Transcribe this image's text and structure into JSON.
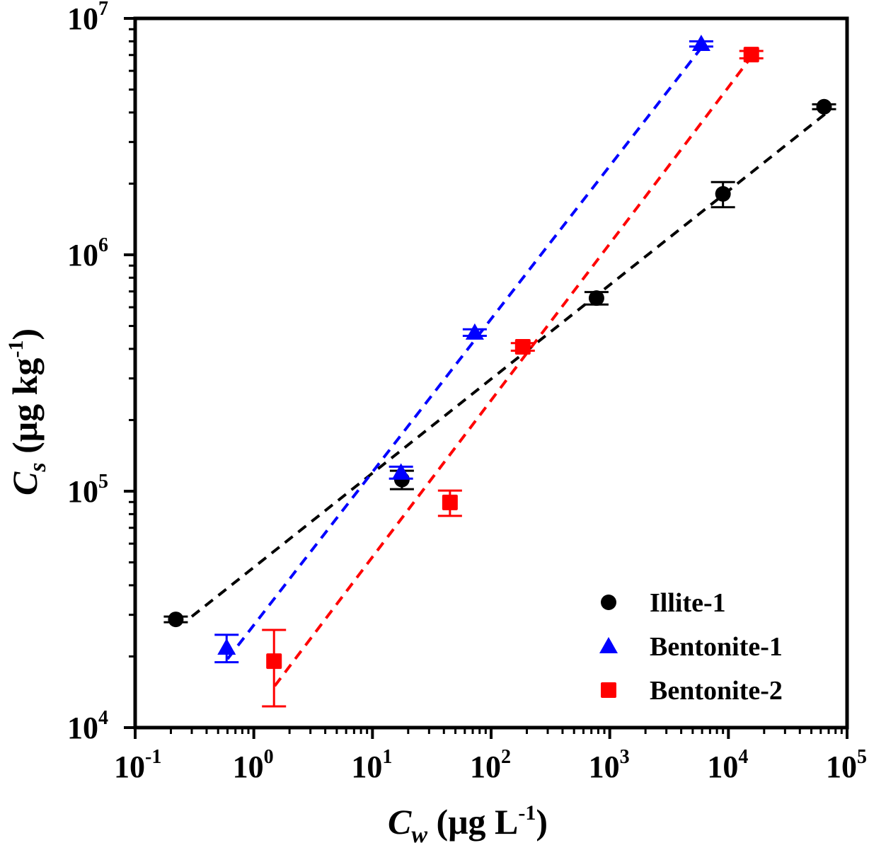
{
  "chart_data": {
    "type": "scatter",
    "title": "",
    "xlabel": {
      "main": "C",
      "sub": "w",
      "unit": " (μg L",
      "unit_sup": "-1",
      "unit_end": ")"
    },
    "ylabel": {
      "main": "C",
      "sub": "s",
      "unit": " (μg kg",
      "unit_sup": "-1",
      "unit_end": ")"
    },
    "xscale": "log",
    "yscale": "log",
    "xlim": [
      0.1,
      100000
    ],
    "ylim": [
      10000,
      10000000
    ],
    "x_ticks": [
      {
        "base": "10",
        "exp": "-1",
        "value": 0.1
      },
      {
        "base": "10",
        "exp": "0",
        "value": 1
      },
      {
        "base": "10",
        "exp": "1",
        "value": 10
      },
      {
        "base": "10",
        "exp": "2",
        "value": 100
      },
      {
        "base": "10",
        "exp": "3",
        "value": 1000
      },
      {
        "base": "10",
        "exp": "4",
        "value": 10000
      },
      {
        "base": "10",
        "exp": "5",
        "value": 100000
      }
    ],
    "y_ticks": [
      {
        "base": "10",
        "exp": "4",
        "value": 10000
      },
      {
        "base": "10",
        "exp": "5",
        "value": 100000
      },
      {
        "base": "10",
        "exp": "6",
        "value": 1000000
      },
      {
        "base": "10",
        "exp": "7",
        "value": 10000000
      }
    ],
    "grid": false,
    "legend_position": "bottom-right",
    "series": [
      {
        "name": "Illite-1",
        "marker": "circle",
        "color": "#000000",
        "points": [
          {
            "x": 0.22,
            "y": 28700,
            "yerr": 800
          },
          {
            "x": 17.7,
            "y": 112000,
            "yerr": 10000
          },
          {
            "x": 773,
            "y": 656000,
            "yerr": 40000
          },
          {
            "x": 9000,
            "y": 1810000,
            "yerr": 220000
          },
          {
            "x": 64000,
            "y": 4230000,
            "yerr": 100000
          }
        ],
        "fit": {
          "type": "freundlich",
          "x_range": [
            0.3,
            70000
          ],
          "y_range": [
            29500,
            4050000
          ]
        }
      },
      {
        "name": "Bentonite-1",
        "marker": "triangle",
        "color": "#0000ff",
        "points": [
          {
            "x": 0.59,
            "y": 21800,
            "yerr": 2900
          },
          {
            "x": 17.4,
            "y": 120000,
            "yerr": 7000
          },
          {
            "x": 72.8,
            "y": 469000,
            "yerr": 15000
          },
          {
            "x": 5900,
            "y": 7800000,
            "yerr": 200000
          }
        ],
        "fit": {
          "type": "freundlich",
          "x_range": [
            0.6,
            5900
          ],
          "y_range": [
            19500,
            7500000
          ]
        }
      },
      {
        "name": "Bentonite-2",
        "marker": "square",
        "color": "#ff0000",
        "points": [
          {
            "x": 1.48,
            "y": 19100,
            "yerr": 6800
          },
          {
            "x": 45,
            "y": 89600,
            "yerr": 11000
          },
          {
            "x": 185,
            "y": 408000,
            "yerr": 15000
          },
          {
            "x": 15600,
            "y": 7030000,
            "yerr": 250000
          }
        ],
        "fit": {
          "type": "freundlich",
          "x_range": [
            1.5,
            15000
          ],
          "y_range": [
            15000,
            6700000
          ]
        }
      }
    ]
  }
}
